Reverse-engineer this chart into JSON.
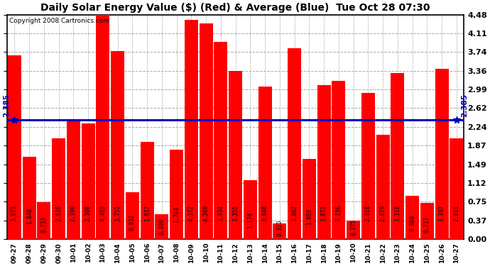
{
  "title": "Daily Solar Energy Value ($) (Red) & Average (Blue)  Tue Oct 28 07:30",
  "copyright": "Copyright 2008 Cartronics.com",
  "average": 2.385,
  "ylim": [
    0,
    4.48
  ],
  "yticks": [
    0.0,
    0.37,
    0.75,
    1.12,
    1.49,
    1.87,
    2.24,
    2.62,
    2.99,
    3.36,
    3.74,
    4.11,
    4.48
  ],
  "bar_color": "#ff0000",
  "avg_color": "#0000bb",
  "background": "#ffffff",
  "grid_color": "#aaaaaa",
  "categories": [
    "09-27",
    "09-28",
    "09-29",
    "09-30",
    "10-01",
    "10-02",
    "10-03",
    "10-04",
    "10-05",
    "10-06",
    "10-07",
    "10-08",
    "10-09",
    "10-10",
    "10-11",
    "10-12",
    "10-13",
    "10-14",
    "10-15",
    "10-16",
    "10-17",
    "10-18",
    "10-19",
    "10-20",
    "10-21",
    "10-22",
    "10-23",
    "10-24",
    "10-25",
    "10-26",
    "10-27"
  ],
  "values": [
    3.673,
    1.648,
    0.733,
    2.016,
    2.39,
    2.308,
    4.483,
    3.751,
    0.932,
    1.937,
    0.49,
    1.784,
    4.372,
    4.309,
    3.934,
    3.355,
    1.174,
    3.048,
    0.31,
    3.807,
    1.603,
    3.071,
    3.156,
    0.375,
    2.918,
    2.079,
    3.318,
    0.868,
    0.717,
    3.397,
    2.011
  ],
  "label_fontsize": 5.5,
  "tick_fontsize": 8.0,
  "title_fontsize": 10,
  "copyright_fontsize": 6.5,
  "avg_label_fontsize": 7.5
}
